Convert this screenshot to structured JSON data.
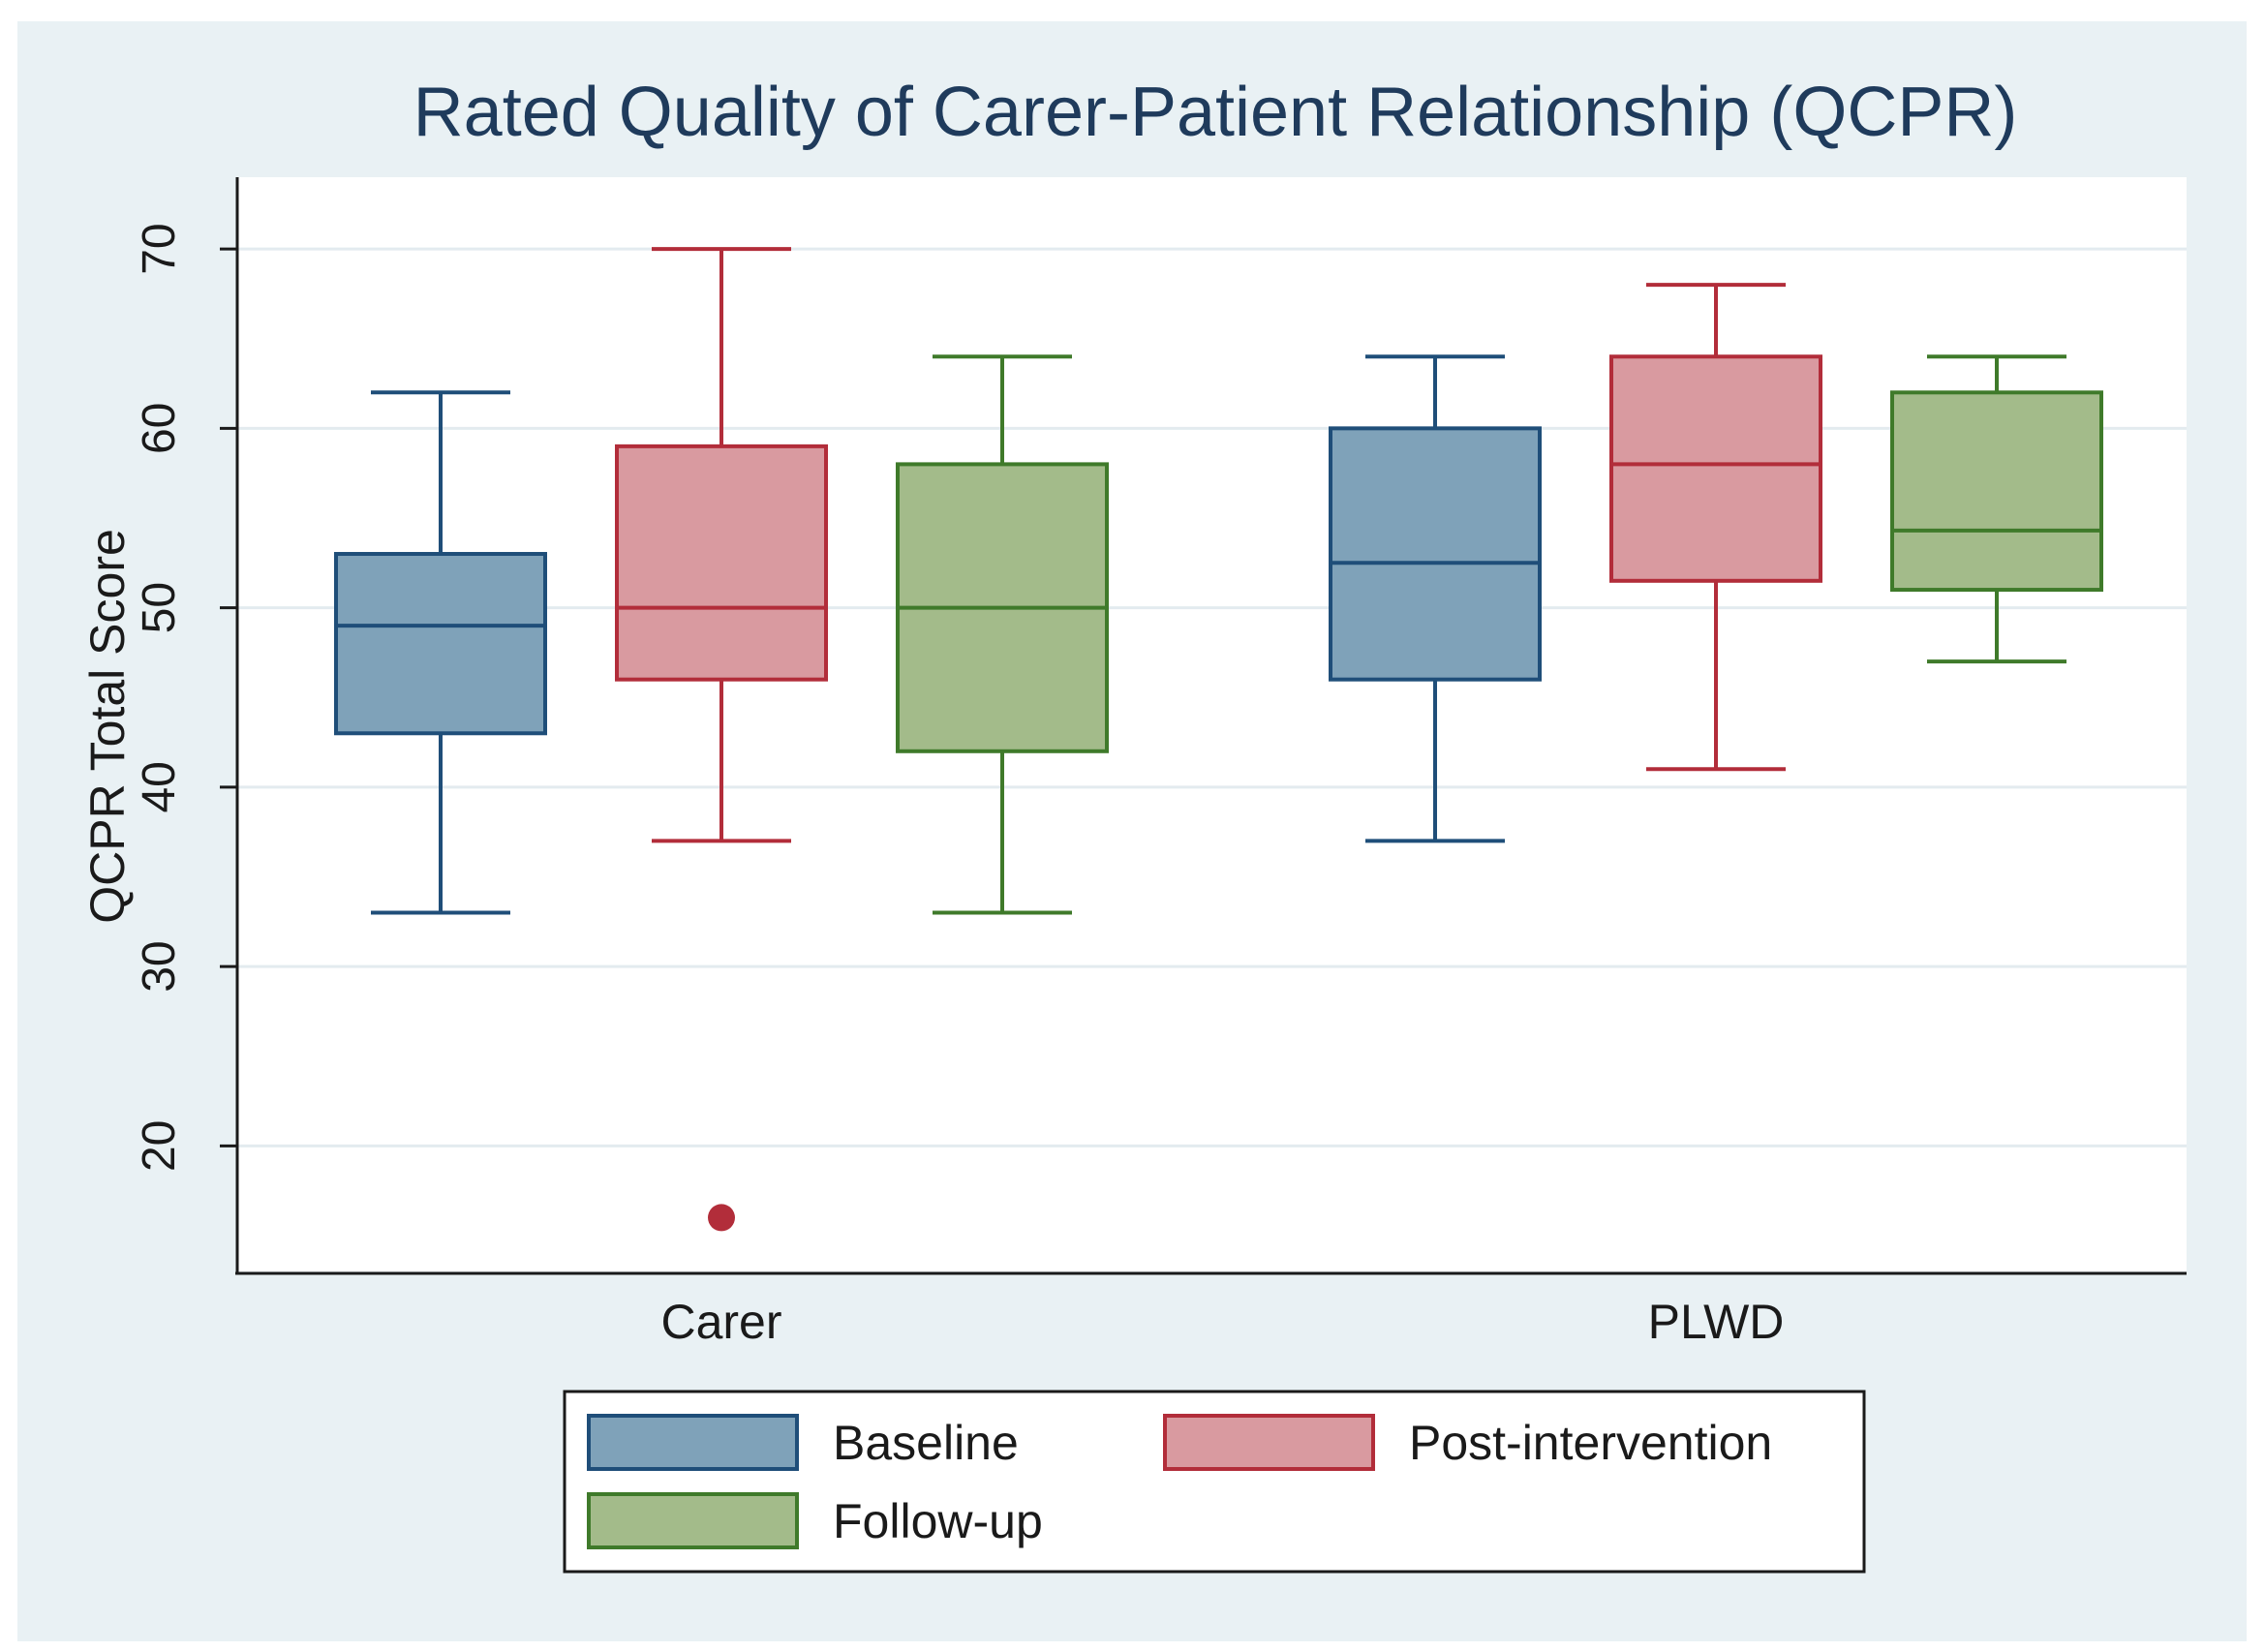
{
  "chart_data": {
    "type": "boxplot",
    "title": "Rated Quality of Carer-Patient Relationship (QCPR)",
    "ylabel": "QCPR Total Score",
    "xlabel": "",
    "ylim": [
      13,
      74
    ],
    "yticks": [
      20,
      30,
      40,
      50,
      60,
      70
    ],
    "grid": true,
    "legend_position": "bottom",
    "categories": [
      "Carer",
      "PLWD"
    ],
    "series": [
      {
        "name": "Baseline",
        "fill": "#7fa2b9",
        "stroke": "#1f4e79",
        "boxes": [
          {
            "category": "Carer",
            "whisker_low": 33,
            "q1": 43,
            "median": 49,
            "q3": 53,
            "whisker_high": 62,
            "outliers": []
          },
          {
            "category": "PLWD",
            "whisker_low": 37,
            "q1": 46,
            "median": 52.5,
            "q3": 60,
            "whisker_high": 64,
            "outliers": []
          }
        ]
      },
      {
        "name": "Post-intervention",
        "fill": "#d99aa0",
        "stroke": "#b22d3a",
        "boxes": [
          {
            "category": "Carer",
            "whisker_low": 37,
            "q1": 46,
            "median": 50,
            "q3": 59,
            "whisker_high": 70,
            "outliers": [
              16
            ]
          },
          {
            "category": "PLWD",
            "whisker_low": 41,
            "q1": 51.5,
            "median": 58,
            "q3": 64,
            "whisker_high": 68,
            "outliers": []
          }
        ]
      },
      {
        "name": "Follow-up",
        "fill": "#a3bb8a",
        "stroke": "#3f7a2a",
        "boxes": [
          {
            "category": "Carer",
            "whisker_low": 33,
            "q1": 42,
            "median": 50,
            "q3": 58,
            "whisker_high": 64,
            "outliers": []
          },
          {
            "category": "PLWD",
            "whisker_low": 47,
            "q1": 51,
            "median": 54.3,
            "q3": 62,
            "whisker_high": 64,
            "outliers": []
          }
        ]
      }
    ],
    "colors": {
      "frame_background": "#e9f1f4",
      "plot_background": "#ffffff",
      "gridline": "#e3ebef",
      "text": "#1a1a1a",
      "title": "#1f3b5c"
    }
  }
}
